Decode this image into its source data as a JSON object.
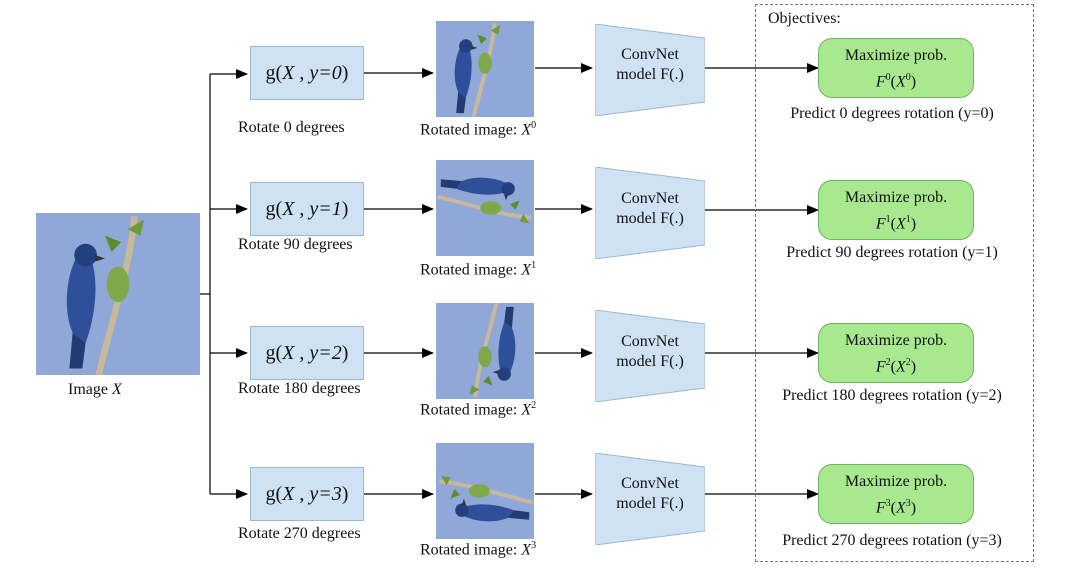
{
  "input": {
    "caption_prefix": "Image",
    "caption_var": "X"
  },
  "objectives_title": "Objectives:",
  "branches": [
    {
      "g_prefix": "g(",
      "g_var": "X",
      "g_sep": " , ",
      "g_y": "y=0",
      "g_suffix": ")",
      "rotate_label": "Rotate 0 degrees",
      "rotated_prefix": "Rotated image:",
      "rotated_var": "X",
      "rotated_sup": "0",
      "angle": 0,
      "convnet_line1": "ConvNet",
      "convnet_line2": "model F(.)",
      "objective_line1": "Maximize prob.",
      "objective_F": "F",
      "objective_sup1": "0",
      "objective_X": "X",
      "objective_sup2": "0",
      "predict_label": "Predict 0 degrees rotation (y=0)"
    },
    {
      "g_prefix": "g(",
      "g_var": "X",
      "g_sep": " , ",
      "g_y": "y=1",
      "g_suffix": ")",
      "rotate_label": "Rotate 90 degrees",
      "rotated_prefix": "Rotated image:",
      "rotated_var": "X",
      "rotated_sup": "1",
      "angle": 90,
      "convnet_line1": "ConvNet",
      "convnet_line2": "model F(.)",
      "objective_line1": "Maximize prob.",
      "objective_F": "F",
      "objective_sup1": "1",
      "objective_X": "X",
      "objective_sup2": "1",
      "predict_label": "Predict 90 degrees rotation (y=1)"
    },
    {
      "g_prefix": "g(",
      "g_var": "X",
      "g_sep": " , ",
      "g_y": "y=2",
      "g_suffix": ")",
      "rotate_label": "Rotate 180 degrees",
      "rotated_prefix": "Rotated image:",
      "rotated_var": "X",
      "rotated_sup": "2",
      "angle": 180,
      "convnet_line1": "ConvNet",
      "convnet_line2": "model F(.)",
      "objective_line1": "Maximize prob.",
      "objective_F": "F",
      "objective_sup1": "2",
      "objective_X": "X",
      "objective_sup2": "2",
      "predict_label": "Predict 180 degrees rotation (y=2)"
    },
    {
      "g_prefix": "g(",
      "g_var": "X",
      "g_sep": " , ",
      "g_y": "y=3",
      "g_suffix": ")",
      "rotate_label": "Rotate 270 degrees",
      "rotated_prefix": "Rotated image:",
      "rotated_var": "X",
      "rotated_sup": "3",
      "angle": 270,
      "convnet_line1": "ConvNet",
      "convnet_line2": "model F(.)",
      "objective_line1": "Maximize prob.",
      "objective_F": "F",
      "objective_sup1": "3",
      "objective_X": "X",
      "objective_sup2": "3",
      "predict_label": "Predict 270 degrees rotation (y=3)"
    }
  ],
  "colors": {
    "sky": "#8fa8d8",
    "g_box_fill": "#cfe2f3",
    "convnet_fill": "#cfe2f3",
    "objective_fill": "#a8e88f",
    "bird": "#2e4f9a",
    "branch": "#c9b89a",
    "leaf": "#6f9a3a"
  }
}
